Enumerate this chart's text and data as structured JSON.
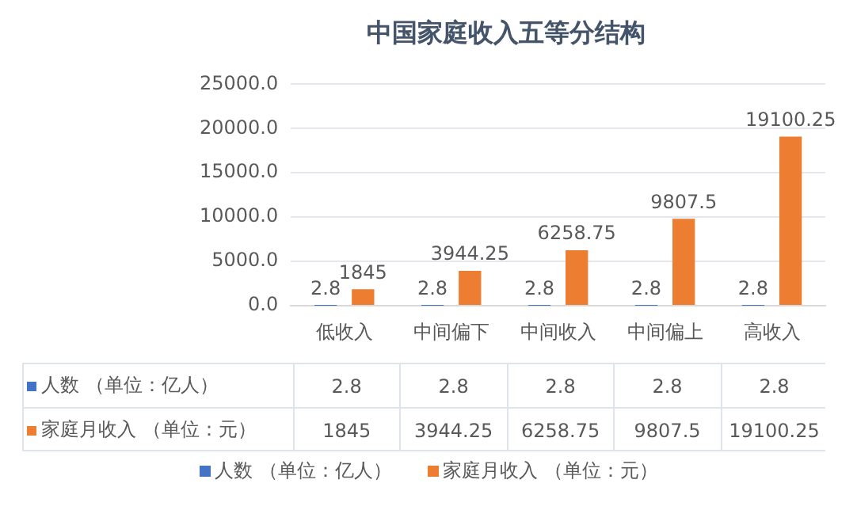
{
  "chart_data": {
    "type": "bar",
    "title": "中国家庭收入五等分结构",
    "categories": [
      "低收入",
      "中间偏下",
      "中间收入",
      "中间偏上",
      "高收入"
    ],
    "series": [
      {
        "name": "人数 （单位：亿人）",
        "color": "#4472c4",
        "values": [
          2.8,
          2.8,
          2.8,
          2.8,
          2.8
        ],
        "value_labels": [
          "2.8",
          "2.8",
          "2.8",
          "2.8",
          "2.8"
        ]
      },
      {
        "name": "家庭月收入 （单位：元）",
        "color": "#ed7d31",
        "values": [
          1845,
          3944.25,
          6258.75,
          9807.5,
          19100.25
        ],
        "value_labels": [
          "1845",
          "3944.25",
          "6258.75",
          "9807.5",
          "19100.25"
        ]
      }
    ],
    "ylim": [
      0,
      25000
    ],
    "yticks": [
      {
        "value": 0,
        "label": "0.0"
      },
      {
        "value": 5000,
        "label": "5000.0"
      },
      {
        "value": 10000,
        "label": "10000.0"
      },
      {
        "value": 15000,
        "label": "15000.0"
      },
      {
        "value": 20000,
        "label": "20000.0"
      },
      {
        "value": 25000,
        "label": "25000.0"
      }
    ],
    "grid": "y",
    "legend": "bottom"
  }
}
